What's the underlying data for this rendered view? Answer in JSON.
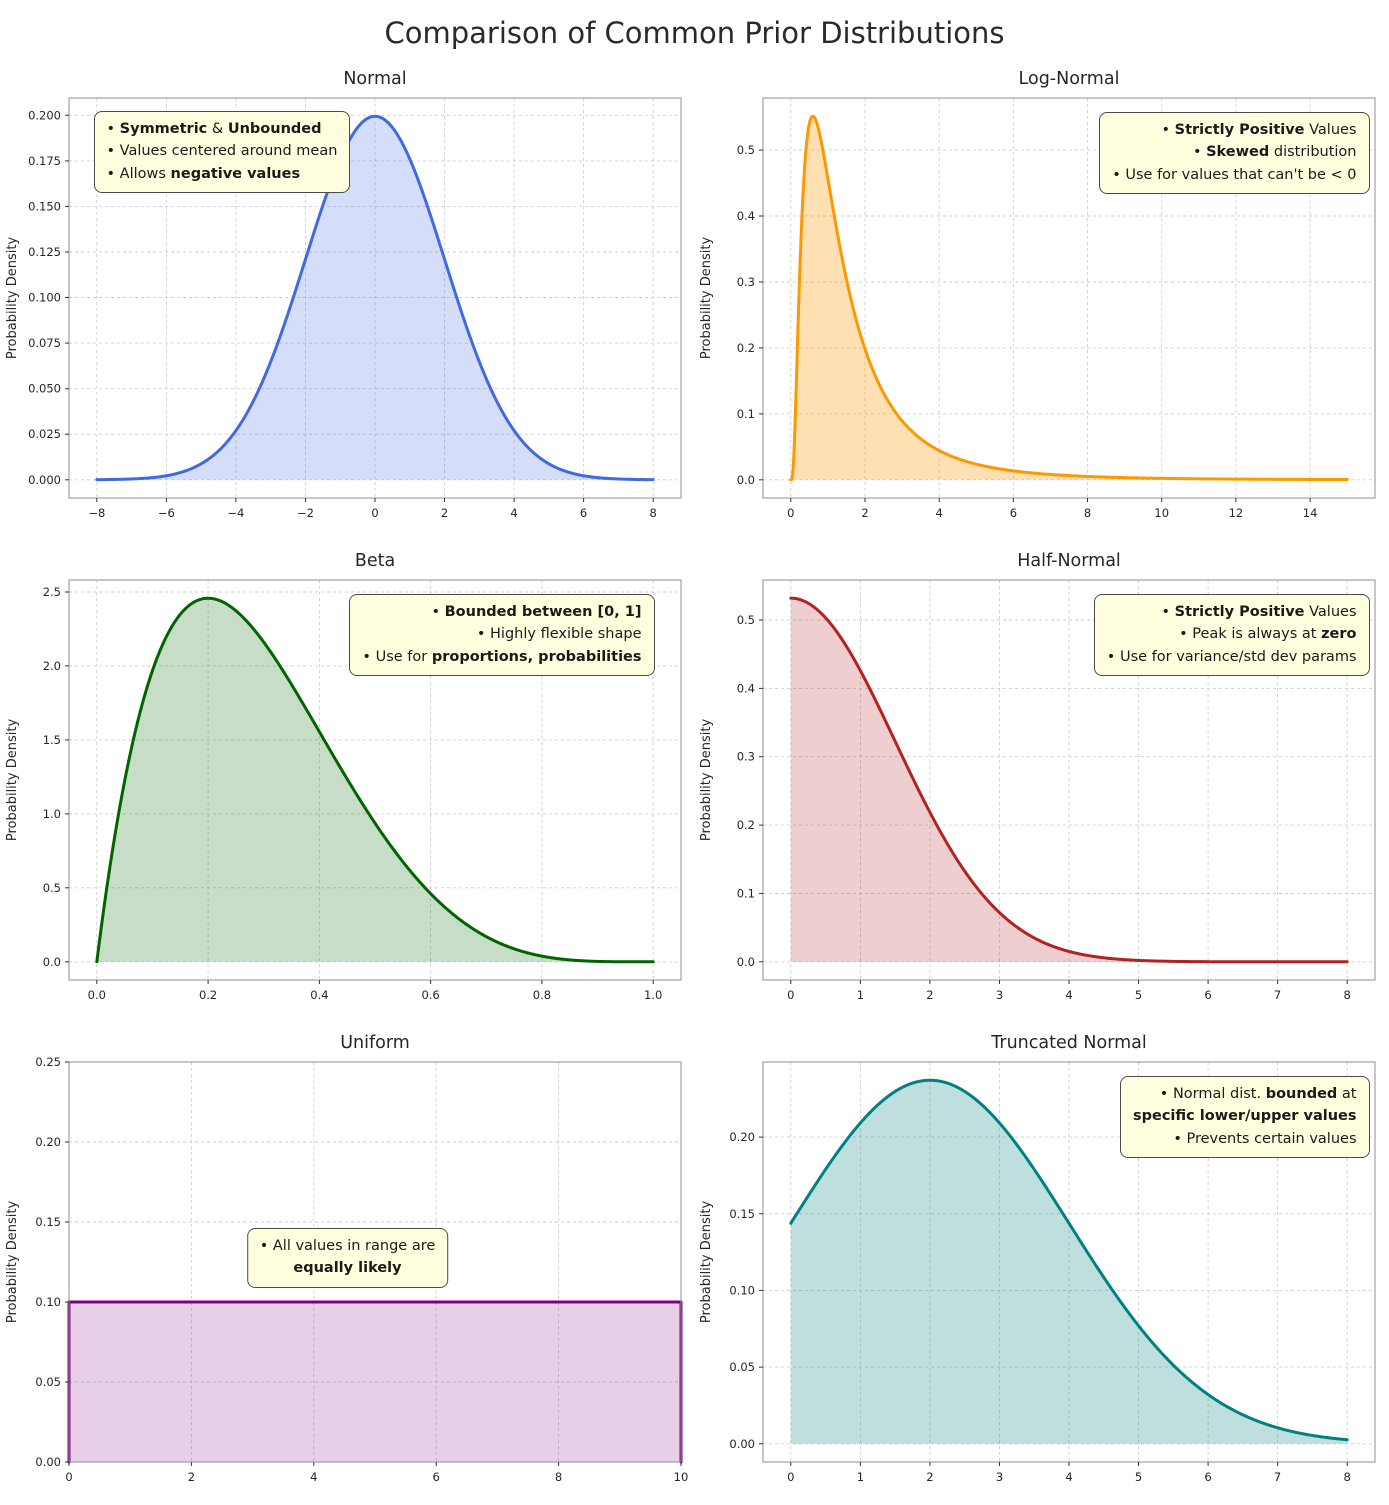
{
  "figure": {
    "title": "Comparison of Common Prior Distributions"
  },
  "chart_data": {
    "type": "area",
    "description": "2x3 grid of probability density function line plots with shaded area under each curve, dashed gridlines",
    "grid": "on",
    "subplots": [
      {
        "id": "normal",
        "title": "Normal",
        "color": "#4169E1",
        "fill_opacity": 0.22,
        "dist": {
          "type": "normal",
          "mu": 0,
          "sigma": 2
        },
        "peak": {
          "x": 0,
          "y": 0.1995
        },
        "curve_range": [
          -8,
          8
        ],
        "xlim": [
          -8.8,
          8.8
        ],
        "ylim": [
          -0.01,
          0.2095
        ],
        "x_ticks": {
          "values": [
            -8,
            -6,
            -4,
            -2,
            0,
            2,
            4,
            6,
            8
          ],
          "labels": [
            "−8",
            "−6",
            "−4",
            "−2",
            "0",
            "2",
            "4",
            "6",
            "8"
          ]
        },
        "y_ticks": {
          "values": [
            0,
            0.025,
            0.05,
            0.075,
            0.1,
            0.125,
            0.15,
            0.175,
            0.2
          ],
          "labels": [
            "0.000",
            "0.025",
            "0.050",
            "0.075",
            "0.100",
            "0.125",
            "0.150",
            "0.175",
            "0.200"
          ]
        },
        "ylabel": "Probability Density",
        "annotation": {
          "anchor": "left",
          "ox": 25,
          "oy": 13,
          "align": "left",
          "lines": [
            [
              {
                "t": "• "
              },
              {
                "t": "Symmetric",
                "b": true
              },
              {
                "t": " & "
              },
              {
                "t": "Unbounded",
                "b": true
              }
            ],
            [
              {
                "t": "• Values centered around mean"
              }
            ],
            [
              {
                "t": "• Allows "
              },
              {
                "t": "negative values",
                "b": true
              }
            ]
          ]
        }
      },
      {
        "id": "lognormal",
        "title": "Log-Normal",
        "color": "#FF9800",
        "fill_opacity": 0.3,
        "dist": {
          "type": "lognormal",
          "mu": 0.2,
          "sigma": 0.85
        },
        "peak": {
          "x": 0.59,
          "y": 0.551
        },
        "curve_range": [
          0,
          15
        ],
        "xlim": [
          -0.75,
          15.75
        ],
        "ylim": [
          -0.0276,
          0.579
        ],
        "x_ticks": {
          "values": [
            0,
            2,
            4,
            6,
            8,
            10,
            12,
            14
          ],
          "labels": [
            "0",
            "2",
            "4",
            "6",
            "8",
            "10",
            "12",
            "14"
          ]
        },
        "y_ticks": {
          "values": [
            0,
            0.1,
            0.2,
            0.3,
            0.4,
            0.5
          ],
          "labels": [
            "0.0",
            "0.1",
            "0.2",
            "0.3",
            "0.4",
            "0.5"
          ]
        },
        "ylabel": "Probability Density",
        "annotation": {
          "anchor": "right",
          "ox": 5,
          "oy": 14,
          "align": "right",
          "lines": [
            [
              {
                "t": "• "
              },
              {
                "t": "Strictly Positive",
                "b": true
              },
              {
                "t": " Values"
              }
            ],
            [
              {
                "t": "• "
              },
              {
                "t": "Skewed",
                "b": true
              },
              {
                "t": " distribution"
              }
            ],
            [
              {
                "t": "• Use for values that can't be < 0"
              }
            ]
          ]
        }
      },
      {
        "id": "beta",
        "title": "Beta",
        "color": "#006400",
        "fill_opacity": 0.22,
        "dist": {
          "type": "beta",
          "a": 2,
          "b": 5
        },
        "peak": {
          "x": 0.2,
          "y": 2.458
        },
        "curve_range": [
          0,
          1
        ],
        "xlim": [
          -0.05,
          1.05
        ],
        "ylim": [
          -0.123,
          2.581
        ],
        "x_ticks": {
          "values": [
            0,
            0.2,
            0.4,
            0.6,
            0.8,
            1
          ],
          "labels": [
            "0.0",
            "0.2",
            "0.4",
            "0.6",
            "0.8",
            "1.0"
          ]
        },
        "y_ticks": {
          "values": [
            0,
            0.5,
            1,
            1.5,
            2,
            2.5
          ],
          "labels": [
            "0.0",
            "0.5",
            "1.0",
            "1.5",
            "2.0",
            "2.5"
          ]
        },
        "ylabel": "Probability Density",
        "annotation": {
          "anchor": "right",
          "ox": 26,
          "oy": 14,
          "align": "right",
          "lines": [
            [
              {
                "t": "• "
              },
              {
                "t": "Bounded between [0, 1]",
                "b": true
              }
            ],
            [
              {
                "t": "• Highly flexible shape"
              }
            ],
            [
              {
                "t": "• Use for "
              },
              {
                "t": "proportions, probabilities",
                "b": true
              }
            ]
          ]
        }
      },
      {
        "id": "halfnormal",
        "title": "Half-Normal",
        "color": "#B22222",
        "fill_opacity": 0.22,
        "dist": {
          "type": "halfnormal",
          "sigma": 1.5
        },
        "peak": {
          "x": 0,
          "y": 0.532
        },
        "curve_range": [
          0,
          8
        ],
        "xlim": [
          -0.4,
          8.4
        ],
        "ylim": [
          -0.0266,
          0.5585
        ],
        "x_ticks": {
          "values": [
            0,
            1,
            2,
            3,
            4,
            5,
            6,
            7,
            8
          ],
          "labels": [
            "0",
            "1",
            "2",
            "3",
            "4",
            "5",
            "6",
            "7",
            "8"
          ]
        },
        "y_ticks": {
          "values": [
            0,
            0.1,
            0.2,
            0.3,
            0.4,
            0.5
          ],
          "labels": [
            "0.0",
            "0.1",
            "0.2",
            "0.3",
            "0.4",
            "0.5"
          ]
        },
        "ylabel": "Probability Density",
        "annotation": {
          "anchor": "right",
          "ox": 5,
          "oy": 14,
          "align": "right",
          "lines": [
            [
              {
                "t": "• "
              },
              {
                "t": "Strictly Positive",
                "b": true
              },
              {
                "t": " Values"
              }
            ],
            [
              {
                "t": "• Peak is always at "
              },
              {
                "t": "zero",
                "b": true
              }
            ],
            [
              {
                "t": "• Use for variance/std dev params"
              }
            ]
          ]
        }
      },
      {
        "id": "uniform",
        "title": "Uniform",
        "color": "#800080",
        "fill_opacity": 0.18,
        "dist": {
          "type": "uniform",
          "a": 0,
          "b": 10
        },
        "peak": {
          "x": null,
          "y": 0.1
        },
        "curve_range": [
          0,
          10
        ],
        "xlim": [
          0,
          10
        ],
        "ylim": [
          0,
          0.25
        ],
        "x_ticks": {
          "values": [
            0,
            2,
            4,
            6,
            8,
            10
          ],
          "labels": [
            "0",
            "2",
            "4",
            "6",
            "8",
            "10"
          ]
        },
        "y_ticks": {
          "values": [
            0,
            0.05,
            0.1,
            0.15,
            0.2,
            0.25
          ],
          "labels": [
            "0.00",
            "0.05",
            "0.10",
            "0.15",
            "0.20",
            "0.25"
          ]
        },
        "ylabel": "Probability Density",
        "annotation": {
          "anchor": "center",
          "ox": 0,
          "oy": 166,
          "align": "center",
          "lines": [
            [
              {
                "t": "• All values in range are"
              }
            ],
            [
              {
                "t": "equally likely",
                "b": true
              }
            ]
          ]
        }
      },
      {
        "id": "truncnorm",
        "title": "Truncated Normal",
        "color": "#008080",
        "fill_opacity": 0.25,
        "dist": {
          "type": "truncnorm",
          "mu": 2,
          "sigma": 2,
          "a": 0,
          "b": null
        },
        "peak": {
          "x": 2,
          "y": 0.237
        },
        "curve_range": [
          0,
          8
        ],
        "xlim": [
          -0.4,
          8.4
        ],
        "ylim": [
          -0.0119,
          0.249
        ],
        "x_ticks": {
          "values": [
            0,
            1,
            2,
            3,
            4,
            5,
            6,
            7,
            8
          ],
          "labels": [
            "0",
            "1",
            "2",
            "3",
            "4",
            "5",
            "6",
            "7",
            "8"
          ]
        },
        "y_ticks": {
          "values": [
            0,
            0.05,
            0.1,
            0.15,
            0.2
          ],
          "labels": [
            "0.00",
            "0.05",
            "0.10",
            "0.15",
            "0.20"
          ]
        },
        "ylabel": "Probability Density",
        "annotation": {
          "anchor": "right",
          "ox": 5,
          "oy": 14,
          "align": "right",
          "lines": [
            [
              {
                "t": "• Normal dist. "
              },
              {
                "t": "bounded",
                "b": true
              },
              {
                "t": " at"
              }
            ],
            [
              {
                "t": "specific lower/upper values",
                "b": true
              }
            ],
            [
              {
                "t": "• Prevents certain values"
              }
            ]
          ]
        }
      }
    ]
  }
}
